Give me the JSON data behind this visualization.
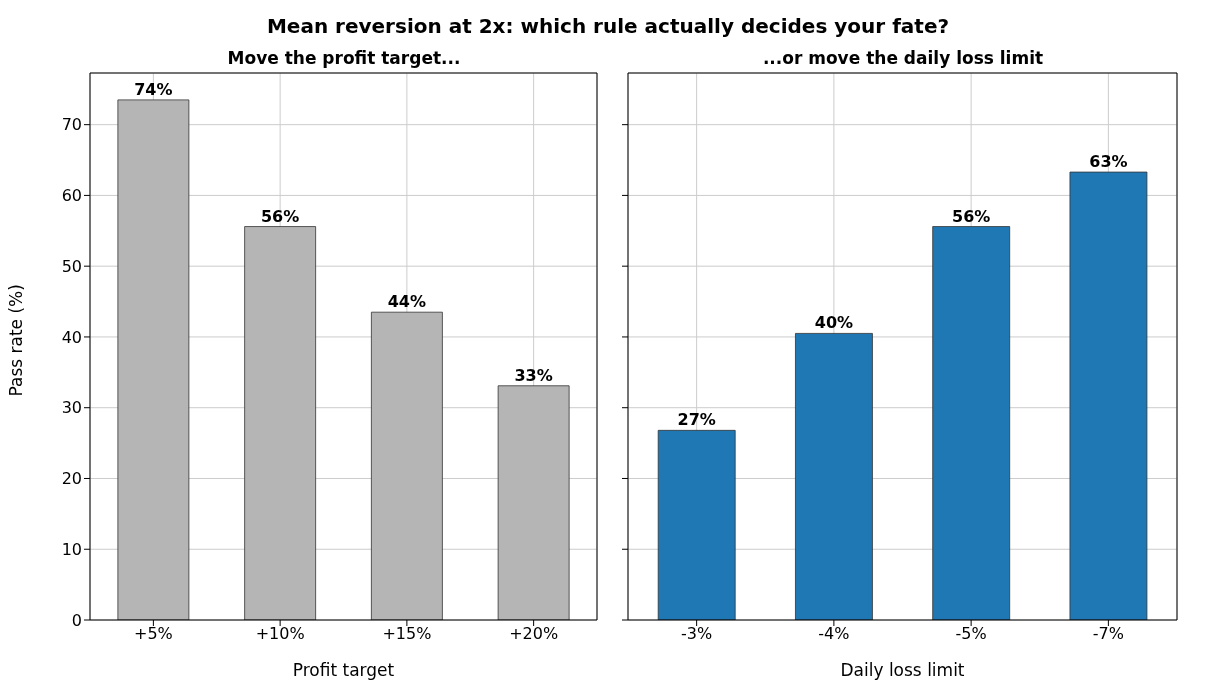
{
  "chart_data": [
    {
      "type": "bar",
      "title": "Mean reversion at 2x: which rule actually decides your fate?",
      "subtitle": "Move the profit target...",
      "xlabel": "Profit target",
      "ylabel": "Pass rate (%)",
      "categories": [
        "+5%",
        "+10%",
        "+15%",
        "+20%"
      ],
      "values": [
        73.5,
        55.6,
        43.5,
        33.1
      ],
      "value_labels": [
        "74%",
        "56%",
        "44%",
        "33%"
      ],
      "color": "#b5b5b5",
      "ylim": [
        0,
        77.3
      ],
      "yticks": [
        0,
        10,
        20,
        30,
        40,
        50,
        60,
        70
      ],
      "grid": true
    },
    {
      "type": "bar",
      "subtitle": "...or move the daily loss limit",
      "xlabel": "Daily loss limit",
      "categories": [
        "-3%",
        "-4%",
        "-5%",
        "-7%"
      ],
      "values": [
        26.8,
        40.5,
        55.6,
        63.3
      ],
      "value_labels": [
        "27%",
        "40%",
        "56%",
        "63%"
      ],
      "color": "#1f77b4",
      "ylim": [
        0,
        77.3
      ],
      "yticks": [
        0,
        10,
        20,
        30,
        40,
        50,
        60,
        70
      ],
      "grid": true,
      "tick_labels": "x"
    }
  ]
}
